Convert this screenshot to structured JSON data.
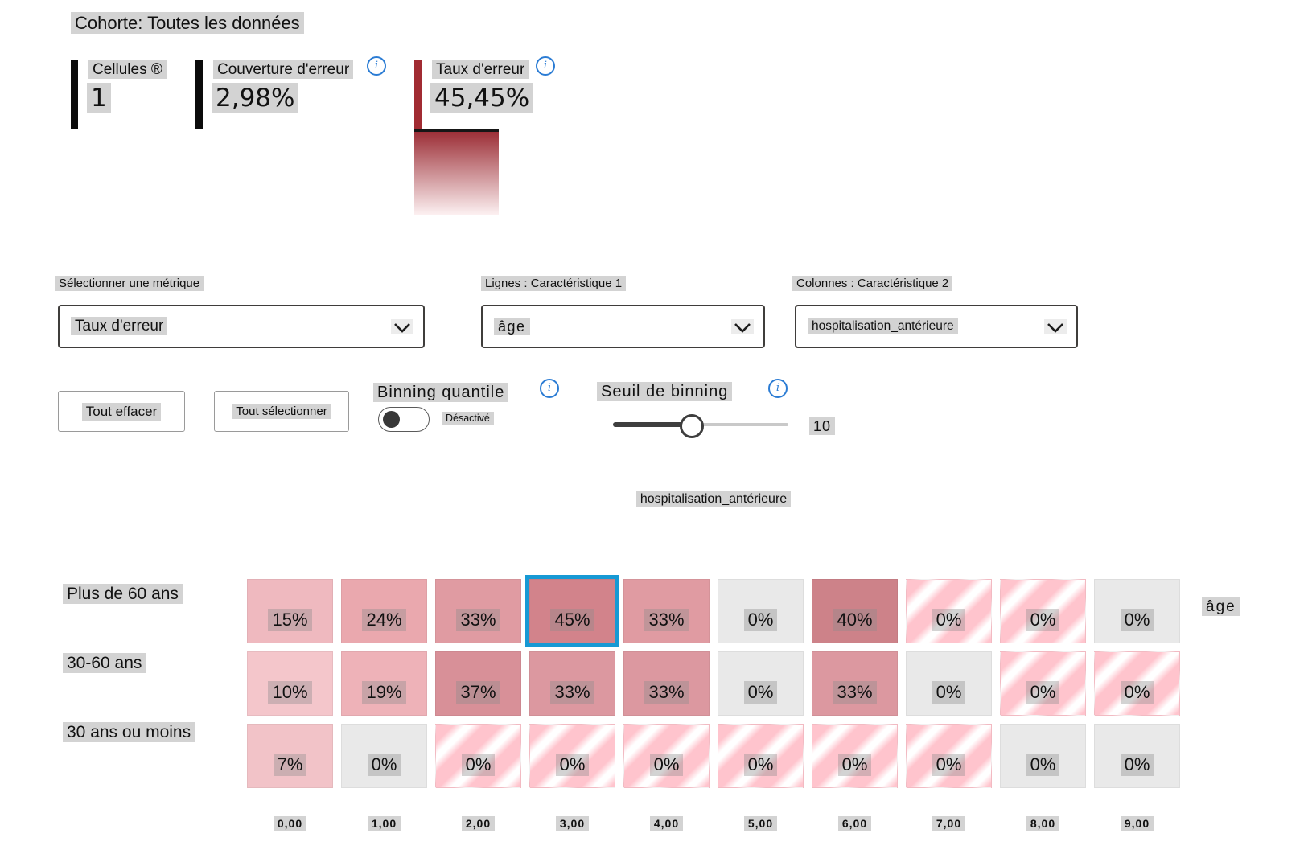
{
  "cohort_label": "Cohorte: Toutes les données",
  "metrics": [
    {
      "label": "Cellules ®",
      "value": "1",
      "bar_color": "#0b0b0b",
      "has_info": false
    },
    {
      "label": "Couverture d'erreur",
      "value": "2,98%",
      "bar_color": "#0b0b0b",
      "has_info": true
    },
    {
      "label": "Taux d'erreur",
      "value": "45,45%",
      "bar_color": "#a12b32",
      "has_info": true
    }
  ],
  "selectors": [
    {
      "label": "Sélectionner une métrique",
      "value": "Taux d'erreur"
    },
    {
      "label": "Lignes : Caractéristique 1",
      "value": "âge"
    },
    {
      "label": "Colonnes : Caractéristique 2",
      "value": "hospitalisation_antérieure"
    }
  ],
  "buttons": {
    "clear_all": "Tout effacer",
    "select_all": "Tout sélectionner"
  },
  "quantile_binning": {
    "label": "Binning quantile",
    "state": "Désactivé"
  },
  "binning_threshold": {
    "label": "Seuil de binning",
    "value": "10"
  },
  "icons": {
    "info": "i"
  },
  "heatmap": {
    "title": "hospitalisation_antérieure",
    "row_axis_label": "âge",
    "columns": [
      "0,00",
      "1,00",
      "2,00",
      "3,00",
      "4,00",
      "5,00",
      "6,00",
      "7,00",
      "8,00",
      "9,00"
    ],
    "rows": [
      {
        "label": "Plus de 60 ans",
        "cells": [
          {
            "v": "15%",
            "t": "fill",
            "c": "#efb9bf"
          },
          {
            "v": "24%",
            "t": "fill",
            "c": "#eaa8ae"
          },
          {
            "v": "33%",
            "t": "fill",
            "c": "#e09ba2"
          },
          {
            "v": "45%",
            "t": "fill",
            "c": "#d2838b",
            "selected": true
          },
          {
            "v": "33%",
            "t": "fill",
            "c": "#e09ba2"
          },
          {
            "v": "0%",
            "t": "gray"
          },
          {
            "v": "40%",
            "t": "fill",
            "c": "#cd8289"
          },
          {
            "v": "0%",
            "t": "striped"
          },
          {
            "v": "0%",
            "t": "striped"
          },
          {
            "v": "0%",
            "t": "gray"
          }
        ]
      },
      {
        "label": "30-60 ans",
        "cells": [
          {
            "v": "10%",
            "t": "fill",
            "c": "#f4c6cb"
          },
          {
            "v": "19%",
            "t": "fill",
            "c": "#eeb2b8"
          },
          {
            "v": "37%",
            "t": "fill",
            "c": "#d89098"
          },
          {
            "v": "33%",
            "t": "fill",
            "c": "#dc98a0"
          },
          {
            "v": "33%",
            "t": "fill",
            "c": "#dc98a0"
          },
          {
            "v": "0%",
            "t": "gray"
          },
          {
            "v": "33%",
            "t": "fill",
            "c": "#dc98a0"
          },
          {
            "v": "0%",
            "t": "gray"
          },
          {
            "v": "0%",
            "t": "striped"
          },
          {
            "v": "0%",
            "t": "striped"
          }
        ]
      },
      {
        "label": "30 ans ou moins",
        "cells": [
          {
            "v": "7%",
            "t": "fill",
            "c": "#f2c3c8"
          },
          {
            "v": "0%",
            "t": "gray"
          },
          {
            "v": "0%",
            "t": "striped"
          },
          {
            "v": "0%",
            "t": "striped"
          },
          {
            "v": "0%",
            "t": "striped"
          },
          {
            "v": "0%",
            "t": "striped"
          },
          {
            "v": "0%",
            "t": "striped"
          },
          {
            "v": "0%",
            "t": "striped"
          },
          {
            "v": "0%",
            "t": "gray"
          },
          {
            "v": "0%",
            "t": "gray"
          }
        ]
      }
    ]
  },
  "colors": {
    "selection_blue": "#1799d4",
    "info_blue": "#2b7cd4",
    "error_bar_red": "#a12b32",
    "legend_top": "#9c2f37",
    "legend_bottom": "#fcf0f1",
    "cell_gray": "#e9e9e9",
    "stripe_pink": "#ffc4cd"
  }
}
